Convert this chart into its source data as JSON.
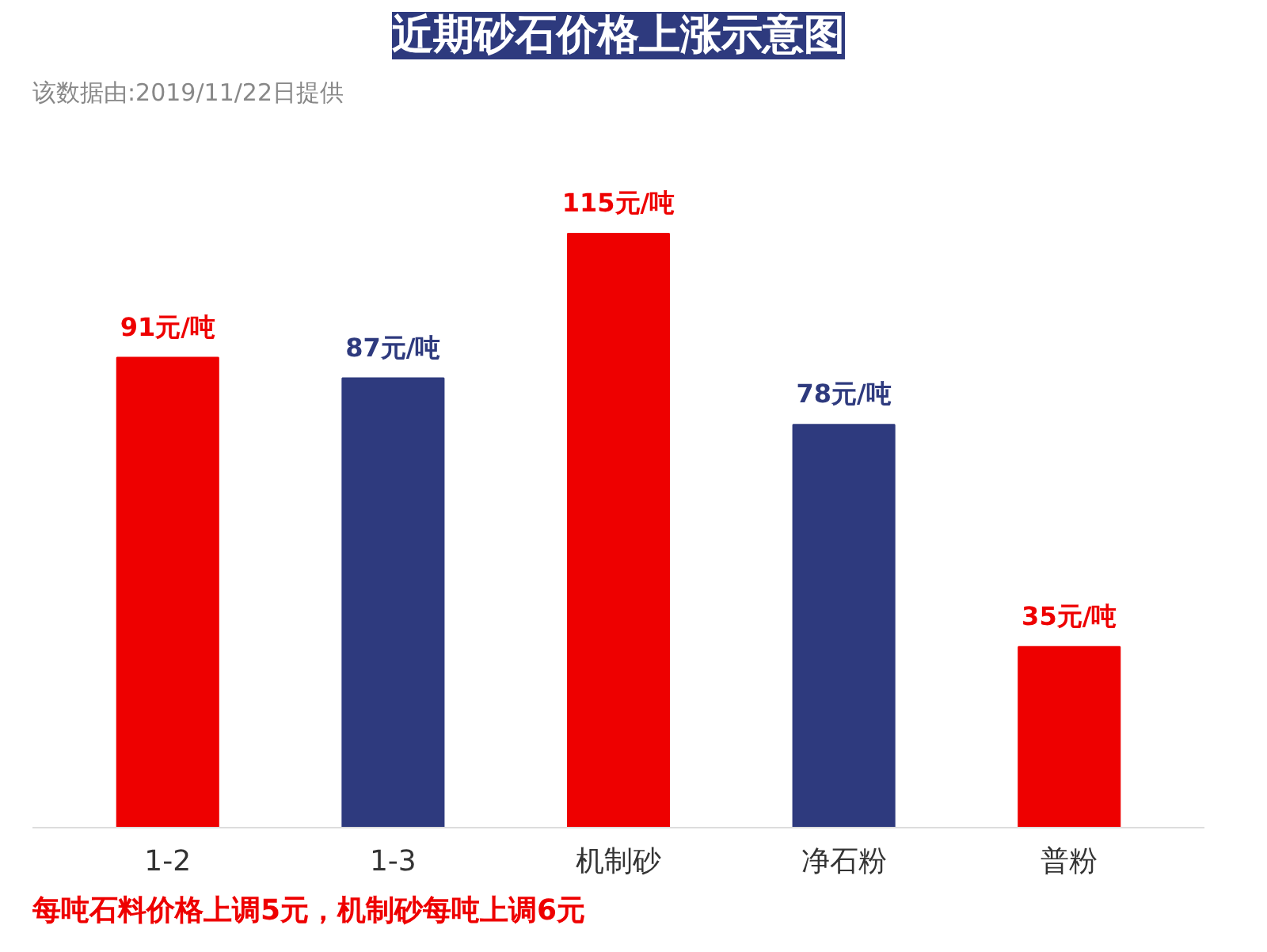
{
  "chart_data": {
    "type": "bar",
    "title": "近期砂石价格上涨示意图",
    "subtitle": "该数据由:2019/11/22日提供",
    "categories": [
      "1-2",
      "1-3",
      "机制砂",
      "净石粉",
      "普粉"
    ],
    "values": [
      91,
      87,
      115,
      78,
      35
    ],
    "colors": [
      "#ee0000",
      "#2e3a7e",
      "#ee0000",
      "#2e3a7e",
      "#ee0000"
    ],
    "value_labels": [
      "91元/吨",
      "87元/吨",
      "115元/吨",
      "78元/吨",
      "35元/吨"
    ],
    "annotations": [
      "每吨石料价格上调5元，机制砂每吨上调6元"
    ]
  }
}
